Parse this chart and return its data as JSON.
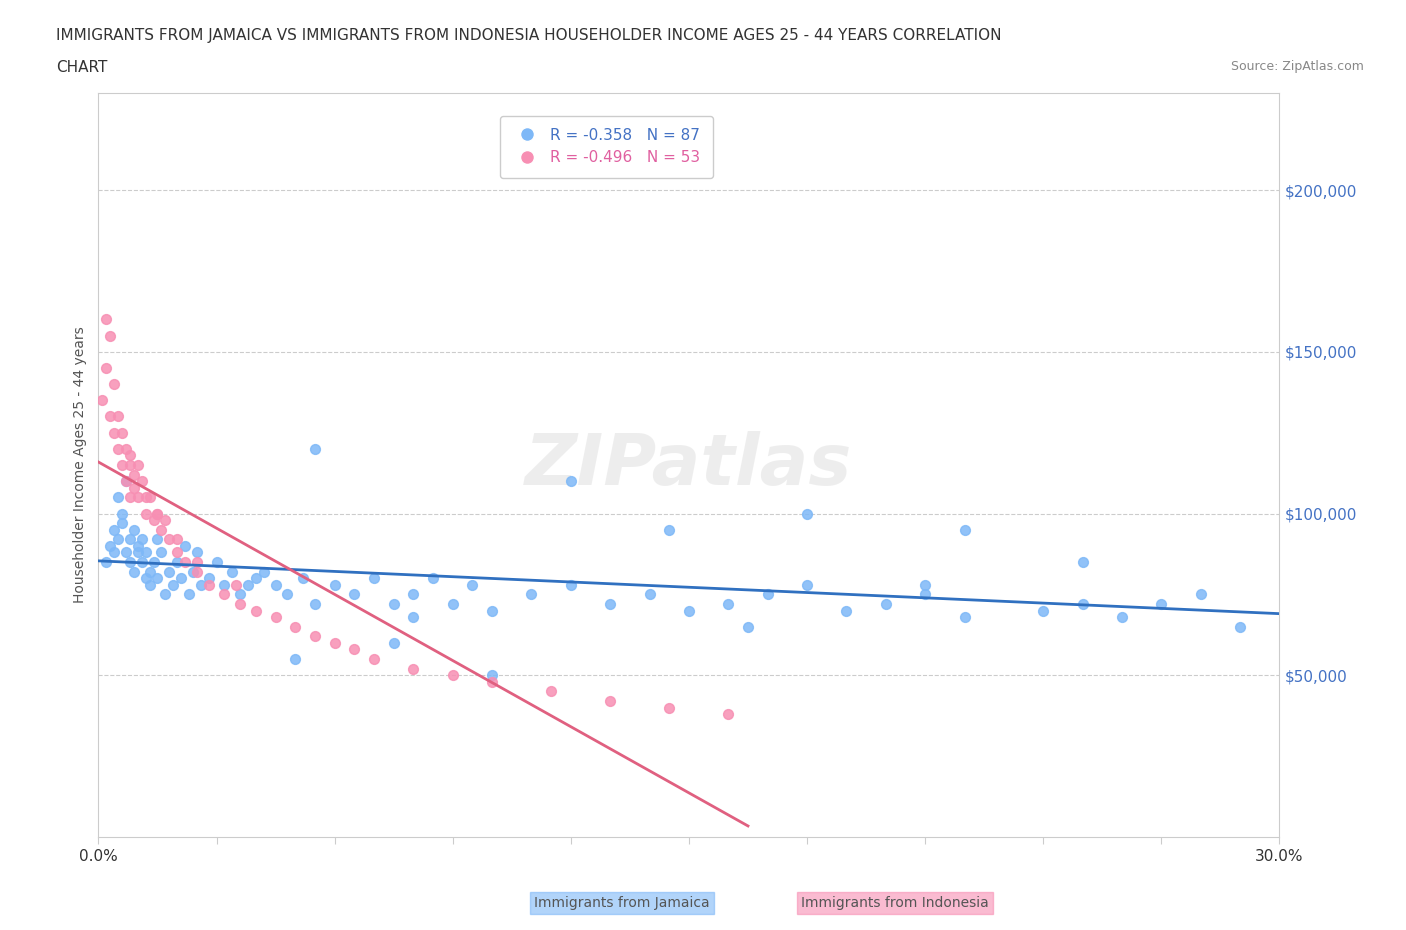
{
  "title_line1": "IMMIGRANTS FROM JAMAICA VS IMMIGRANTS FROM INDONESIA HOUSEHOLDER INCOME AGES 25 - 44 YEARS CORRELATION",
  "title_line2": "CHART",
  "source_text": "Source: ZipAtlas.com",
  "xlabel": "",
  "ylabel": "Householder Income Ages 25 - 44 years",
  "xlim": [
    0.0,
    0.3
  ],
  "ylim": [
    0,
    230000
  ],
  "xticks": [
    0.0,
    0.03,
    0.06,
    0.09,
    0.12,
    0.15,
    0.18,
    0.21,
    0.24,
    0.27,
    0.3
  ],
  "xtick_labels": [
    "0.0%",
    "",
    "",
    "",
    "",
    "",
    "",
    "",
    "",
    "",
    "30.0%"
  ],
  "ytick_values": [
    50000,
    100000,
    150000,
    200000
  ],
  "ytick_labels": [
    "$50,000",
    "$100,000",
    "$150,000",
    "$200,000"
  ],
  "jamaica_color": "#7EB8F7",
  "indonesia_color": "#F78FB3",
  "jamaica_line_color": "#3070C0",
  "indonesia_line_color": "#E06080",
  "jamaica_R": -0.358,
  "jamaica_N": 87,
  "indonesia_R": -0.496,
  "indonesia_N": 53,
  "legend_R_jamaica": "R = -0.358",
  "legend_N_jamaica": "N = 87",
  "legend_R_indonesia": "R = -0.496",
  "legend_N_indonesia": "N = 53",
  "watermark": "ZIPatlas",
  "jamaica_x": [
    0.002,
    0.003,
    0.004,
    0.004,
    0.005,
    0.005,
    0.006,
    0.006,
    0.007,
    0.007,
    0.008,
    0.008,
    0.009,
    0.009,
    0.01,
    0.01,
    0.011,
    0.011,
    0.012,
    0.012,
    0.013,
    0.013,
    0.014,
    0.015,
    0.015,
    0.016,
    0.017,
    0.018,
    0.019,
    0.02,
    0.021,
    0.022,
    0.023,
    0.024,
    0.025,
    0.026,
    0.028,
    0.03,
    0.032,
    0.034,
    0.036,
    0.038,
    0.04,
    0.042,
    0.045,
    0.048,
    0.052,
    0.055,
    0.06,
    0.065,
    0.07,
    0.075,
    0.08,
    0.085,
    0.09,
    0.095,
    0.1,
    0.11,
    0.12,
    0.13,
    0.14,
    0.15,
    0.16,
    0.17,
    0.18,
    0.19,
    0.2,
    0.21,
    0.22,
    0.24,
    0.25,
    0.26,
    0.27,
    0.28,
    0.29,
    0.055,
    0.12,
    0.18,
    0.22,
    0.25,
    0.21,
    0.08,
    0.05,
    0.1,
    0.165,
    0.145,
    0.075
  ],
  "jamaica_y": [
    85000,
    90000,
    95000,
    88000,
    92000,
    105000,
    100000,
    97000,
    110000,
    88000,
    92000,
    85000,
    95000,
    82000,
    88000,
    90000,
    85000,
    92000,
    80000,
    88000,
    82000,
    78000,
    85000,
    80000,
    92000,
    88000,
    75000,
    82000,
    78000,
    85000,
    80000,
    90000,
    75000,
    82000,
    88000,
    78000,
    80000,
    85000,
    78000,
    82000,
    75000,
    78000,
    80000,
    82000,
    78000,
    75000,
    80000,
    72000,
    78000,
    75000,
    80000,
    72000,
    75000,
    80000,
    72000,
    78000,
    70000,
    75000,
    78000,
    72000,
    75000,
    70000,
    72000,
    75000,
    78000,
    70000,
    72000,
    75000,
    68000,
    70000,
    72000,
    68000,
    72000,
    75000,
    65000,
    120000,
    110000,
    100000,
    95000,
    85000,
    78000,
    68000,
    55000,
    50000,
    65000,
    95000,
    60000
  ],
  "indonesia_x": [
    0.001,
    0.002,
    0.002,
    0.003,
    0.003,
    0.004,
    0.004,
    0.005,
    0.005,
    0.006,
    0.006,
    0.007,
    0.007,
    0.008,
    0.008,
    0.009,
    0.009,
    0.01,
    0.01,
    0.011,
    0.012,
    0.013,
    0.014,
    0.015,
    0.016,
    0.017,
    0.018,
    0.02,
    0.022,
    0.025,
    0.028,
    0.032,
    0.036,
    0.04,
    0.045,
    0.05,
    0.055,
    0.06,
    0.065,
    0.07,
    0.08,
    0.09,
    0.1,
    0.115,
    0.13,
    0.145,
    0.16,
    0.02,
    0.035,
    0.012,
    0.008,
    0.015,
    0.025
  ],
  "indonesia_y": [
    135000,
    145000,
    160000,
    155000,
    130000,
    140000,
    125000,
    130000,
    120000,
    125000,
    115000,
    120000,
    110000,
    115000,
    105000,
    112000,
    108000,
    115000,
    105000,
    110000,
    100000,
    105000,
    98000,
    100000,
    95000,
    98000,
    92000,
    88000,
    85000,
    82000,
    78000,
    75000,
    72000,
    70000,
    68000,
    65000,
    62000,
    60000,
    58000,
    55000,
    52000,
    50000,
    48000,
    45000,
    42000,
    40000,
    38000,
    92000,
    78000,
    105000,
    118000,
    100000,
    85000
  ]
}
